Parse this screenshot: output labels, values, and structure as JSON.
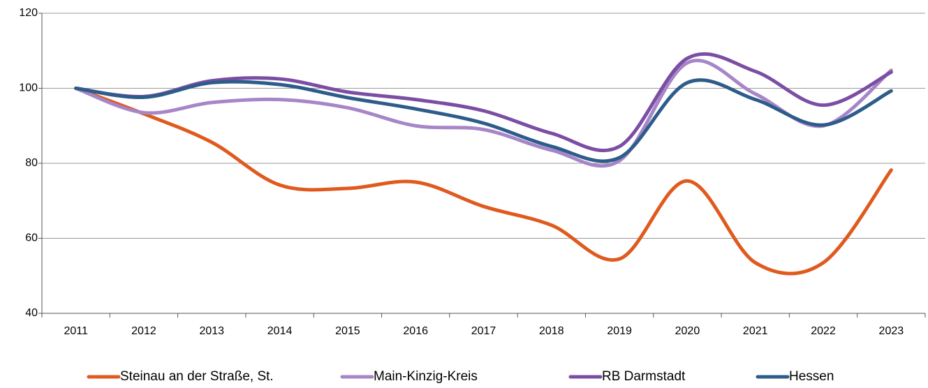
{
  "chart_data": {
    "type": "line",
    "categories": [
      "2011",
      "2012",
      "2013",
      "2014",
      "2015",
      "2016",
      "2017",
      "2018",
      "2019",
      "2020",
      "2021",
      "2022",
      "2023"
    ],
    "series": [
      {
        "name": "Steinau an der Straße, St.",
        "color": "#e05a1e",
        "values": [
          100,
          93.2,
          85.6,
          74.2,
          73.3,
          75,
          68.5,
          63.5,
          54.5,
          75.3,
          53.5,
          53.5,
          78.2
        ]
      },
      {
        "name": "Main-Kinzig-Kreis",
        "color": "#a686c8",
        "values": [
          100,
          93.5,
          96.2,
          97,
          94.8,
          90,
          89,
          83.5,
          80.7,
          106.8,
          98.5,
          90,
          104.8
        ]
      },
      {
        "name": "RB Darmstadt",
        "color": "#7b4ea3",
        "values": [
          100,
          97.8,
          102,
          102.5,
          99,
          97,
          94,
          88,
          84.5,
          108,
          104.5,
          95.5,
          104.3
        ]
      },
      {
        "name": "Hessen",
        "color": "#2e5c8a",
        "values": [
          100,
          97.6,
          101.5,
          101,
          97.5,
          94.5,
          90.7,
          84.5,
          81.5,
          101.5,
          97,
          90.2,
          99.3
        ]
      }
    ],
    "ylim": [
      40,
      120
    ],
    "yticks": [
      40,
      60,
      80,
      100,
      120
    ],
    "grid": true,
    "legend": "bottom"
  }
}
